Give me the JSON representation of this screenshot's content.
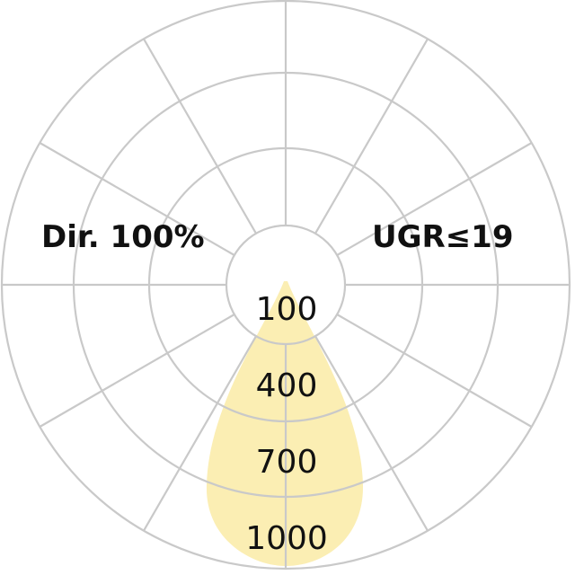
{
  "chart_data": {
    "type": "polar",
    "ring_labels": [
      "100",
      "400",
      "700",
      "1000"
    ],
    "ring_values": [
      100,
      400,
      700,
      1000
    ],
    "angular_step_deg": 30,
    "distribution": "narrow direct downward beam",
    "annotations": {
      "left": "Dir. 100%",
      "right": "UGR≤19"
    },
    "colors": {
      "beam": "#fbeeb3",
      "grid": "#c9c9c9",
      "text": "#111111"
    }
  }
}
